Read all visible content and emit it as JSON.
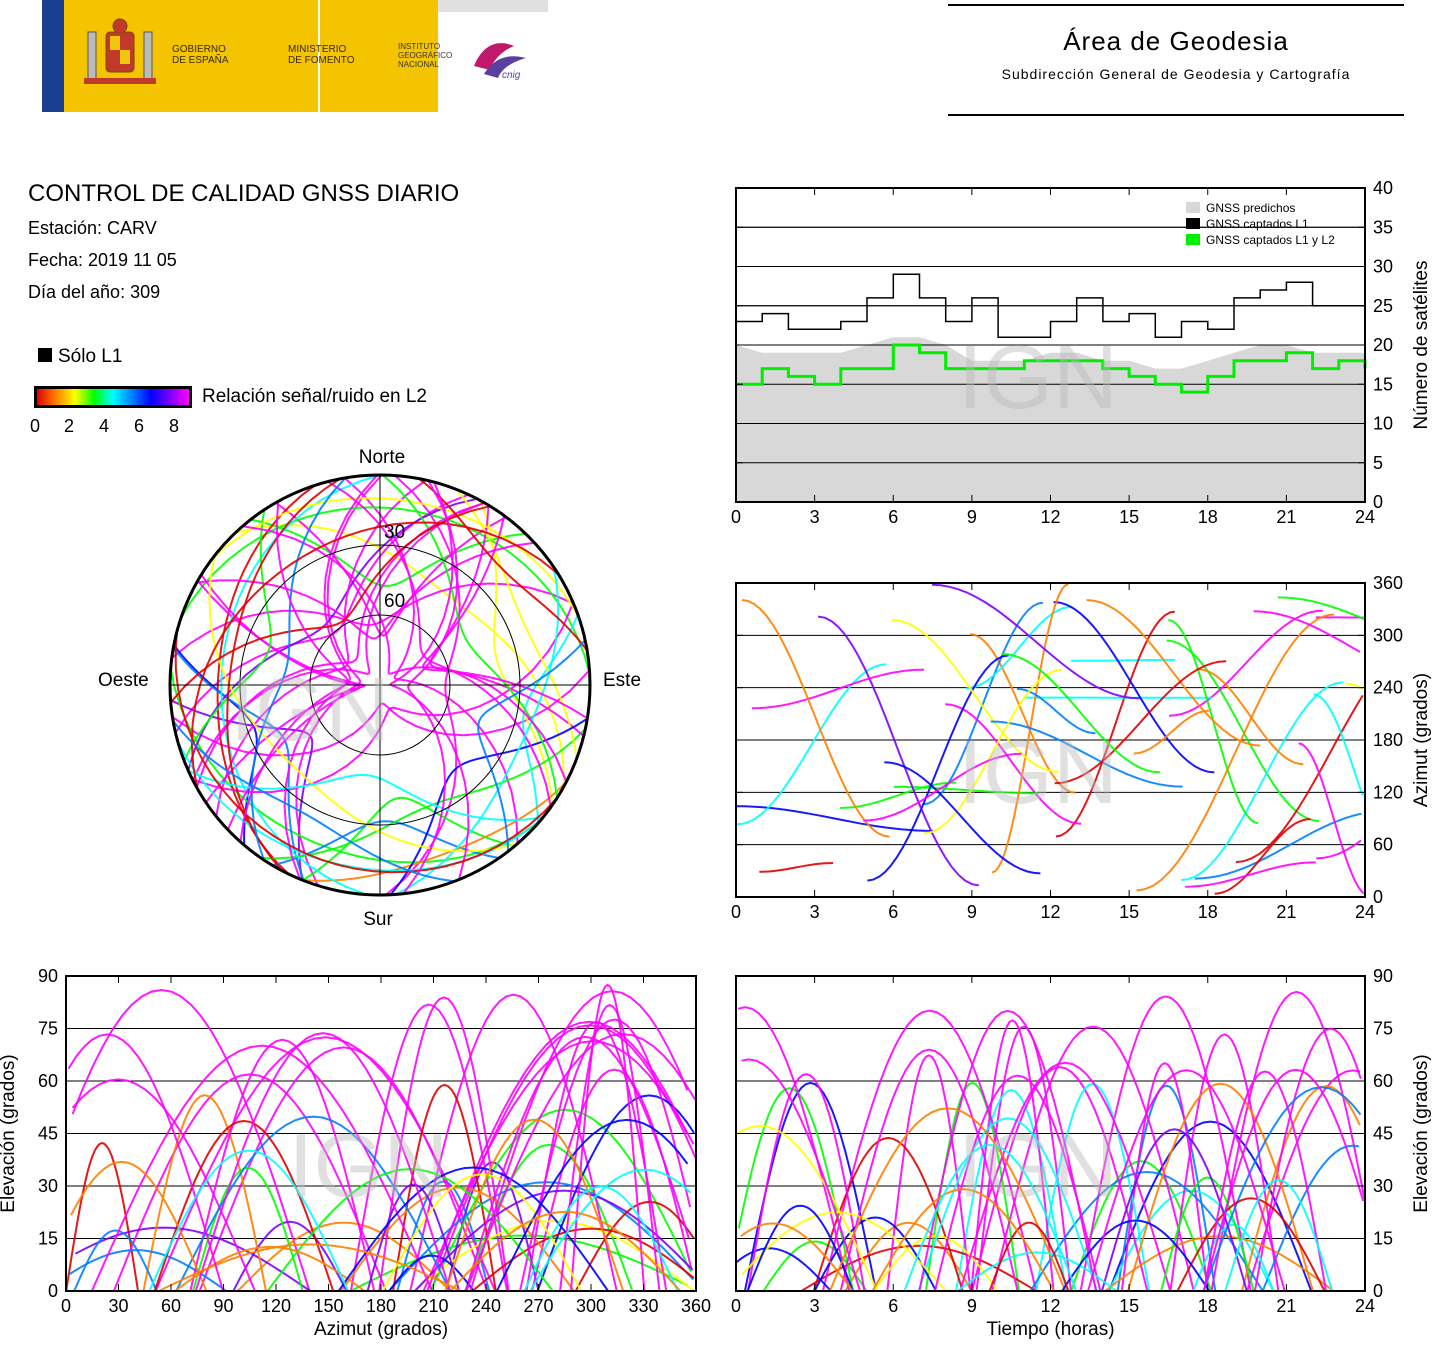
{
  "header": {
    "gov_line1": "GOBIERNO",
    "gov_line2": "DE ESPAÑA",
    "min_line1": "MINISTERIO",
    "min_line2": "DE FOMENTO",
    "inst_line1": "INSTITUTO",
    "inst_line2": "GEOGRÁFICO",
    "inst_line3": "NACIONAL",
    "cnig": "cnig",
    "area_title": "Área de Geodesia",
    "area_subtitle": "Subdirección General de Geodesia y Cartografía"
  },
  "info": {
    "title": "CONTROL DE CALIDAD GNSS DIARIO",
    "station": "Estación: CARV",
    "date": "Fecha: 2019 11 05",
    "doy": "Día del año: 309"
  },
  "legend": {
    "l1_only": "Sólo L1",
    "snr_label": "Relación señal/ruido en L2",
    "snr_ticks": [
      "0",
      "2",
      "4",
      "6",
      "8"
    ],
    "snr_colors": [
      "#e00000",
      "#ff8000",
      "#ffff00",
      "#00ff00",
      "#00ffff",
      "#0080ff",
      "#0000ff",
      "#8000ff",
      "#ff00ff"
    ]
  },
  "watermark": "IGN",
  "skyplot": {
    "north": "Norte",
    "south": "Sur",
    "west": "Oeste",
    "east": "Este",
    "ring_labels": [
      "30",
      "60"
    ]
  },
  "chart_data": [
    {
      "id": "satellites",
      "type": "line",
      "ylabel": "Número de satélites",
      "xticks": [
        "0",
        "3",
        "6",
        "9",
        "12",
        "15",
        "18",
        "21",
        "24"
      ],
      "yticks": [
        "0",
        "5",
        "10",
        "15",
        "20",
        "25",
        "30",
        "35",
        "40"
      ],
      "xlim": [
        0,
        24
      ],
      "ylim": [
        0,
        40
      ],
      "grid": "horizontal",
      "legend_position": "top-right",
      "series": [
        {
          "name": "GNSS predichos",
          "color": "#d8d8d8",
          "x": [
            0,
            1,
            2,
            3,
            4,
            5,
            6,
            7,
            8,
            9,
            10,
            11,
            12,
            13,
            14,
            15,
            16,
            17,
            18,
            19,
            20,
            21,
            22,
            23,
            24
          ],
          "y": [
            20,
            19,
            19,
            19,
            19,
            20,
            21,
            21,
            20,
            18,
            18,
            18,
            19,
            19,
            18,
            18,
            17,
            17,
            18,
            19,
            20,
            20,
            19,
            19,
            19
          ]
        },
        {
          "name": "GNSS captados L1",
          "color": "#000000",
          "x": [
            0,
            1,
            2,
            3,
            4,
            5,
            6,
            7,
            8,
            9,
            10,
            11,
            12,
            13,
            14,
            15,
            16,
            17,
            18,
            19,
            20,
            21,
            22,
            23,
            24
          ],
          "y": [
            23,
            24,
            22,
            22,
            23,
            26,
            29,
            26,
            23,
            26,
            21,
            21,
            23,
            26,
            23,
            24,
            21,
            23,
            22,
            26,
            27,
            28,
            25,
            25,
            23
          ]
        },
        {
          "name": "GNSS captados L1 y L2",
          "color": "#00ee00",
          "x": [
            0,
            1,
            2,
            3,
            4,
            5,
            6,
            7,
            8,
            9,
            10,
            11,
            12,
            13,
            14,
            15,
            16,
            17,
            18,
            19,
            20,
            21,
            22,
            23,
            24
          ],
          "y": [
            15,
            17,
            16,
            15,
            17,
            17,
            20,
            19,
            17,
            17,
            17,
            18,
            18,
            18,
            17,
            16,
            15,
            14,
            16,
            18,
            18,
            19,
            17,
            18,
            17
          ]
        }
      ]
    },
    {
      "id": "azimuth",
      "type": "scatter",
      "ylabel": "Azimut (grados)",
      "xticks": [
        "0",
        "3",
        "6",
        "9",
        "12",
        "15",
        "18",
        "21",
        "24"
      ],
      "yticks": [
        "0",
        "60",
        "120",
        "180",
        "240",
        "300",
        "360"
      ],
      "xlim": [
        0,
        24
      ],
      "ylim": [
        0,
        360
      ],
      "grid": "horizontal"
    },
    {
      "id": "elev_azimuth",
      "type": "scatter",
      "xlabel": "Azimut (grados)",
      "ylabel": "Elevación (grados)",
      "xticks": [
        "0",
        "30",
        "60",
        "90",
        "120",
        "150",
        "180",
        "210",
        "240",
        "270",
        "300",
        "330",
        "360"
      ],
      "yticks": [
        "0",
        "15",
        "30",
        "45",
        "60",
        "75",
        "90"
      ],
      "xlim": [
        0,
        360
      ],
      "ylim": [
        0,
        90
      ],
      "grid": "horizontal"
    },
    {
      "id": "elev_time",
      "type": "scatter",
      "xlabel": "Tiempo (horas)",
      "ylabel": "Elevación (grados)",
      "xticks": [
        "0",
        "3",
        "6",
        "9",
        "12",
        "15",
        "18",
        "21",
        "24"
      ],
      "yticks": [
        "0",
        "15",
        "30",
        "45",
        "60",
        "75",
        "90"
      ],
      "xlim": [
        0,
        24
      ],
      "ylim": [
        0,
        90
      ],
      "grid": "horizontal"
    }
  ]
}
